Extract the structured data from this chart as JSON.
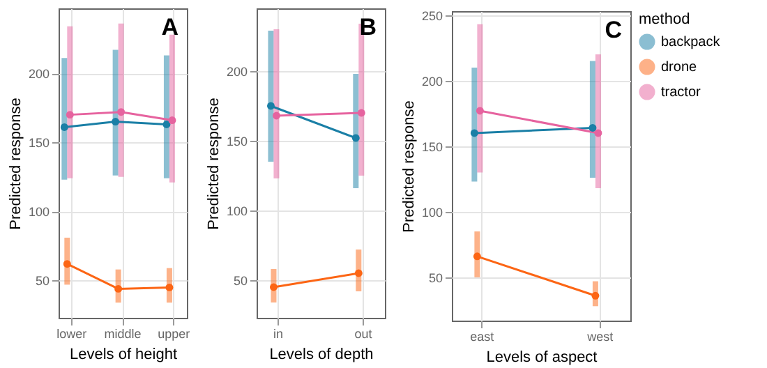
{
  "chart_data": [
    {
      "type": "line",
      "xlabel": "Levels of height",
      "ylabel": "Predicted response",
      "annotations": [
        "A"
      ],
      "categories": [
        "lower",
        "middle",
        "upper"
      ],
      "ylim": [
        23,
        247
      ],
      "yticks": [
        50,
        100,
        150,
        200
      ],
      "grid": true,
      "marker": "circle",
      "series": [
        {
          "color": "#1a7fa6",
          "values": [
            161,
            165,
            163
          ],
          "errors": [
            [
              123,
              211
            ],
            [
              126,
              217
            ],
            [
              124,
              213
            ]
          ]
        },
        {
          "color": "#fc6514",
          "values": [
            62,
            44,
            45
          ],
          "errors": [
            [
              47,
              81
            ],
            [
              34,
              58
            ],
            [
              34,
              59
            ]
          ]
        },
        {
          "color": "#e6639f",
          "values": [
            170,
            172,
            166
          ],
          "errors": [
            [
              124,
              234
            ],
            [
              125,
              236
            ],
            [
              121,
              228
            ]
          ]
        }
      ]
    },
    {
      "type": "line",
      "xlabel": "Levels of depth",
      "ylabel": "Predicted response",
      "annotations": [
        "B"
      ],
      "categories": [
        "in",
        "out"
      ],
      "ylim": [
        23,
        245
      ],
      "yticks": [
        50,
        100,
        150,
        200
      ],
      "grid": true,
      "marker": "circle",
      "series": [
        {
          "color": "#1a7fa6",
          "values": [
            175,
            152
          ],
          "errors": [
            [
              135,
              229
            ],
            [
              116,
              198
            ]
          ]
        },
        {
          "color": "#fc6514",
          "values": [
            45,
            55
          ],
          "errors": [
            [
              34,
              58
            ],
            [
              42,
              72
            ]
          ]
        },
        {
          "color": "#e6639f",
          "values": [
            168,
            170
          ],
          "errors": [
            [
              123,
              230
            ],
            [
              125,
              234
            ]
          ]
        }
      ]
    },
    {
      "type": "line",
      "xlabel": "Levels of aspect",
      "ylabel": "Predicted response",
      "annotations": [
        "C"
      ],
      "legend_title": "method",
      "legend": "right",
      "categories": [
        "east",
        "west"
      ],
      "ylim": [
        17,
        253
      ],
      "yticks": [
        50,
        100,
        150,
        200,
        250
      ],
      "grid": true,
      "marker": "circle",
      "series": [
        {
          "name": "backpack",
          "color": "#1a7fa6",
          "values": [
            160,
            164
          ],
          "errors": [
            [
              123,
              210
            ],
            [
              126,
              215
            ]
          ]
        },
        {
          "name": "drone",
          "color": "#fc6514",
          "values": [
            66,
            36
          ],
          "errors": [
            [
              50,
              85
            ],
            [
              28,
              47
            ]
          ]
        },
        {
          "name": "tractor",
          "color": "#e6639f",
          "values": [
            177,
            160
          ],
          "errors": [
            [
              130,
              243
            ],
            [
              118,
              220
            ]
          ]
        }
      ]
    }
  ]
}
